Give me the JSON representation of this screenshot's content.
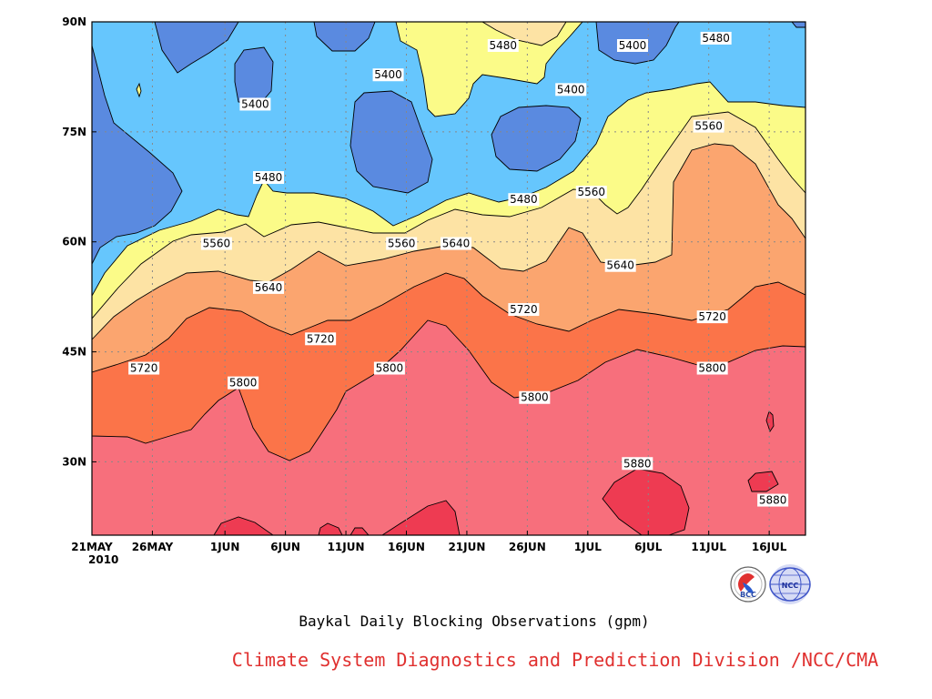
{
  "chart_data": {
    "type": "heatmap",
    "title": "Baykal Daily Blocking Observations (gpm)",
    "credit": "Climate System Diagnostics and Prediction Division /NCC/CMA",
    "year_label": "2010",
    "x_tick_labels": [
      "21MAY",
      "26MAY",
      "1JUN",
      "6JUN",
      "11JUN",
      "16JUN",
      "21JUN",
      "26JUN",
      "1JUL",
      "6JUL",
      "11JUL",
      "16JUL"
    ],
    "x_tick_days": [
      0,
      5,
      11,
      16,
      21,
      26,
      31,
      36,
      41,
      46,
      51,
      56
    ],
    "y_tick_labels": [
      "30N",
      "45N",
      "60N",
      "75N",
      "90N"
    ],
    "y_ticks": [
      30,
      45,
      60,
      75,
      90
    ],
    "xlim_days": [
      0,
      59
    ],
    "ylim": [
      20,
      90
    ],
    "grid": true,
    "contour_levels": [
      5400,
      5480,
      5560,
      5640,
      5720,
      5800,
      5880
    ],
    "level_colors": [
      "#5a8ae0",
      "#66c6fd",
      "#fbfb88",
      "#fde3a4",
      "#fba56f",
      "#fb7449",
      "#f76f7c",
      "#ee3b52"
    ],
    "contour_labels": [
      {
        "text": "5400",
        "day": 13.5,
        "lat": 78.4
      },
      {
        "text": "5400",
        "day": 24.5,
        "lat": 82.4
      },
      {
        "text": "5480",
        "day": 34,
        "lat": 86.4
      },
      {
        "text": "5400",
        "day": 44.7,
        "lat": 86.4
      },
      {
        "text": "5480",
        "day": 51.6,
        "lat": 87.4
      },
      {
        "text": "5400",
        "day": 39.6,
        "lat": 80.4
      },
      {
        "text": "5560",
        "day": 51,
        "lat": 75.4
      },
      {
        "text": "5480",
        "day": 14.6,
        "lat": 68.4
      },
      {
        "text": "5480",
        "day": 35.7,
        "lat": 65.4
      },
      {
        "text": "5560",
        "day": 41.3,
        "lat": 66.4
      },
      {
        "text": "5560",
        "day": 10.3,
        "lat": 59.4
      },
      {
        "text": "5560",
        "day": 25.6,
        "lat": 59.4
      },
      {
        "text": "5640",
        "day": 30.1,
        "lat": 59.4
      },
      {
        "text": "5640",
        "day": 14.6,
        "lat": 53.4
      },
      {
        "text": "5640",
        "day": 43.7,
        "lat": 56.4
      },
      {
        "text": "5720",
        "day": 35.7,
        "lat": 50.4
      },
      {
        "text": "5720",
        "day": 18.9,
        "lat": 46.4
      },
      {
        "text": "5720",
        "day": 51.3,
        "lat": 49.4
      },
      {
        "text": "5720",
        "day": 4.3,
        "lat": 42.4
      },
      {
        "text": "5800",
        "day": 12.5,
        "lat": 40.4
      },
      {
        "text": "5800",
        "day": 24.6,
        "lat": 42.4
      },
      {
        "text": "5800",
        "day": 36.6,
        "lat": 38.4
      },
      {
        "text": "5800",
        "day": 51.3,
        "lat": 42.4
      },
      {
        "text": "5880",
        "day": 45.1,
        "lat": 29.4
      },
      {
        "text": "5880",
        "day": 56.3,
        "lat": 24.4
      }
    ]
  },
  "logos": {
    "bcc": "BCC",
    "ncc": "NCC",
    "bcc_icon": "bcc-logo-icon",
    "ncc_icon": "ncc-logo-icon"
  }
}
